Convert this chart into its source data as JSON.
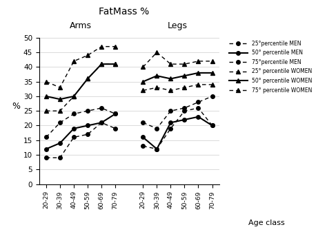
{
  "title": "FatMass %",
  "ylabel": "%",
  "age_labels": [
    "20-29",
    "30-39",
    "40-49",
    "50-59",
    "60-69",
    "70-79"
  ],
  "arms_25_men": [
    9,
    9,
    16,
    17,
    21,
    19
  ],
  "arms_50_men": [
    12,
    14,
    19,
    20,
    21,
    24
  ],
  "arms_75_men": [
    16,
    21,
    24,
    25,
    26,
    24
  ],
  "arms_25_women": [
    35,
    33,
    42,
    44,
    47,
    47
  ],
  "arms_50_women": [
    30,
    29,
    30,
    36,
    41,
    41
  ],
  "arms_75_women": [
    25,
    25,
    30,
    36,
    41,
    41
  ],
  "legs_25_men": [
    13,
    12,
    19,
    25,
    26,
    20
  ],
  "legs_50_men": [
    16,
    12,
    21,
    22,
    23,
    20
  ],
  "legs_75_men": [
    21,
    19,
    25,
    26,
    28,
    30
  ],
  "legs_25_women": [
    40,
    45,
    41,
    41,
    42,
    42
  ],
  "legs_50_women": [
    35,
    37,
    36,
    37,
    38,
    38
  ],
  "legs_75_women": [
    32,
    33,
    32,
    33,
    34,
    34
  ],
  "ylim": [
    0,
    50
  ],
  "yticks": [
    0,
    5,
    10,
    15,
    20,
    25,
    30,
    35,
    40,
    45,
    50
  ],
  "arms_label": "Arms",
  "legs_label": "Legs",
  "age_class_label": "Age class",
  "legend_labels": [
    "25°percentile MEN",
    "50° percentile MEN",
    "75°percentile MEN",
    "25° percentile WOMEN",
    "50° percentile WOMEN",
    "75° percentile WOMEN"
  ]
}
